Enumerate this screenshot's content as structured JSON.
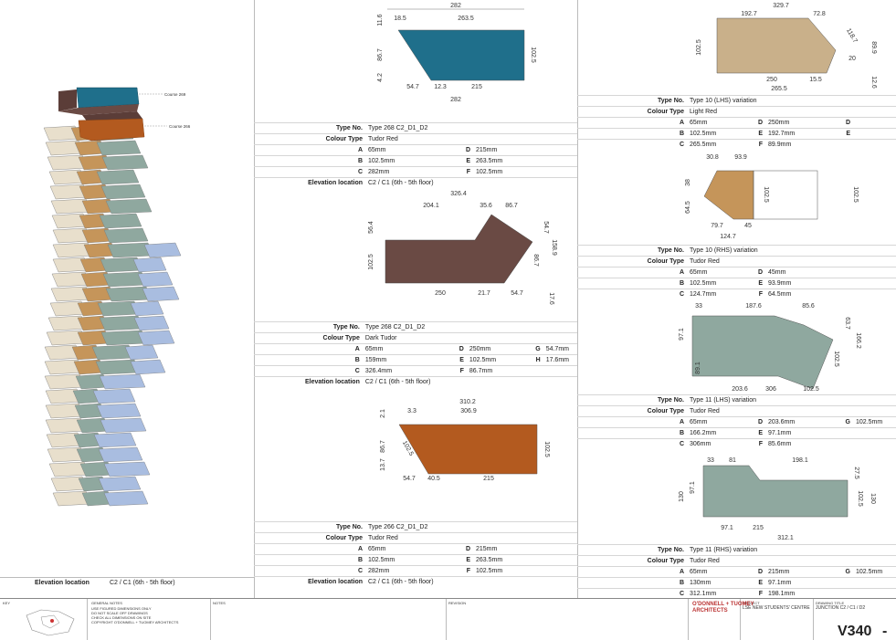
{
  "drawing_title": "JUNCTION C2 / C1 / D2",
  "project": "LSE NEW STUDENTS' CENTRE",
  "sheet_number": "V340",
  "revision": "-",
  "architect": {
    "line1": "O'DONNELL + TUOMEY",
    "line2": "ARCHITECTS"
  },
  "footer": {
    "key_label": "KEY",
    "general_notes_label": "GENERAL NOTES",
    "general_notes": "USE FIGURED DIMENSIONS ONLY\nDO NOT SCALE OFF DRAWINGS\nCHECK ALL DIMENSIONS ON SITE\nCOPYRIGHT O'DONNELL + TUOMEY ARCHITECTS",
    "notes_label": "NOTES",
    "revision_label": "REVISION",
    "project_label": "PROJECT",
    "drawing_title_label": "DRAWING TITLE"
  },
  "left_panel": {
    "course_269": "Course 269",
    "course_266": "Course 266",
    "elevation_label": "Elevation location",
    "elevation_value": "C2 / C1 (6th - 5th floor)"
  },
  "tables": {
    "t268a": {
      "type_label": "Type No.",
      "type_value": "Type 268 C2_D1_D2",
      "colour_label": "Colour Type",
      "colour_value": "Tudor Red",
      "rows": [
        [
          "A",
          "65mm",
          "D",
          "215mm"
        ],
        [
          "B",
          "102.5mm",
          "E",
          "263.5mm"
        ],
        [
          "C",
          "282mm",
          "F",
          "102.5mm"
        ]
      ],
      "elev_label": "Elevation location",
      "elev_value": "C2 / C1 (6th - 5th floor)"
    },
    "t268b": {
      "type_label": "Type No.",
      "type_value": "Type 268 C2_D1_D2",
      "colour_label": "Colour Type",
      "colour_value": "Dark Tudor",
      "rows": [
        [
          "A",
          "65mm",
          "D",
          "250mm",
          "G",
          "54.7mm"
        ],
        [
          "B",
          "159mm",
          "E",
          "102.5mm",
          "H",
          "17.6mm"
        ],
        [
          "C",
          "326.4mm",
          "F",
          "86.7mm",
          "",
          ""
        ]
      ],
      "elev_label": "Elevation location",
      "elev_value": "C2 / C1 (6th - 5th floor)"
    },
    "t266": {
      "type_label": "Type No.",
      "type_value": "Type 266 C2_D1_D2",
      "colour_label": "Colour Type",
      "colour_value": "Tudor Red",
      "rows": [
        [
          "A",
          "65mm",
          "D",
          "215mm"
        ],
        [
          "B",
          "102.5mm",
          "E",
          "263.5mm"
        ],
        [
          "C",
          "282mm",
          "F",
          "102.5mm"
        ]
      ],
      "elev_label": "Elevation location",
      "elev_value": "C2 / C1 (6th - 5th floor)"
    },
    "t10lhs": {
      "type_label": "Type No.",
      "type_value": "Type 10 (LHS) variation",
      "colour_label": "Colour Type",
      "colour_value": "Light Red",
      "rows": [
        [
          "A",
          "65mm",
          "D",
          "250mm",
          "D",
          ""
        ],
        [
          "B",
          "102.5mm",
          "E",
          "192.7mm",
          "E",
          ""
        ],
        [
          "C",
          "265.5mm",
          "F",
          "89.9mm",
          "",
          ""
        ]
      ]
    },
    "t10rhs": {
      "type_label": "Type No.",
      "type_value": "Type 10 (RHS) variation",
      "colour_label": "Colour Type",
      "colour_value": "Tudor Red",
      "rows": [
        [
          "A",
          "65mm",
          "D",
          "45mm"
        ],
        [
          "B",
          "102.5mm",
          "E",
          "93.9mm"
        ],
        [
          "C",
          "124.7mm",
          "F",
          "64.5mm"
        ]
      ]
    },
    "t11lhs": {
      "type_label": "Type No.",
      "type_value": "Type 11 (LHS) variation",
      "colour_label": "Colour Type",
      "colour_value": "Tudor Red",
      "rows": [
        [
          "A",
          "65mm",
          "D",
          "203.6mm",
          "G",
          "102.5mm"
        ],
        [
          "B",
          "166.2mm",
          "E",
          "97.1mm",
          "",
          ""
        ],
        [
          "C",
          "306mm",
          "F",
          "85.6mm",
          "",
          ""
        ]
      ]
    },
    "t11rhs": {
      "type_label": "Type No.",
      "type_value": "Type 11 (RHS) variation",
      "colour_label": "Colour Type",
      "colour_value": "Tudor Red",
      "rows": [
        [
          "A",
          "65mm",
          "D",
          "215mm",
          "G",
          "102.5mm"
        ],
        [
          "B",
          "130mm",
          "E",
          "97.1mm",
          "",
          ""
        ],
        [
          "C",
          "312.1mm",
          "F",
          "198.1mm",
          "",
          ""
        ]
      ]
    }
  },
  "dims": {
    "d1": [
      "282",
      "18.5",
      "263.5",
      "11.6",
      "86.7",
      "4.2",
      "102.5",
      "54.7",
      "12.3",
      "215",
      "282"
    ],
    "d2": [
      "326.4",
      "204.1",
      "35.6",
      "86.7",
      "56.4",
      "102.5",
      "158.9",
      "54.7",
      "86.7",
      "250",
      "21.7",
      "54.7",
      "17.6"
    ],
    "d3": [
      "310.2",
      "3.3",
      "306.9",
      "2.1",
      "86.7",
      "13.7",
      "102.5",
      "102.5",
      "54.7",
      "40.5",
      "215"
    ],
    "d4": [
      "329.7",
      "192.7",
      "72.8",
      "118.7",
      "89.9",
      "102.5",
      "20",
      "250",
      "15.5",
      "265.5",
      "12.6"
    ],
    "d5": [
      "30.8",
      "93.9",
      "38",
      "64.5",
      "102.5",
      "102.5",
      "79.7",
      "45",
      "124.7"
    ],
    "d6": [
      "33",
      "187.6",
      "85.6",
      "97.1",
      "63.7",
      "166.2",
      "102.5",
      "89.1",
      "203.6",
      "306",
      "102.5"
    ],
    "d7": [
      "33",
      "81",
      "198.1",
      "27.5",
      "130",
      "97.1",
      "102.5",
      "130",
      "97.1",
      "215",
      "312.1"
    ]
  },
  "colors": {
    "teal": "#1f6f8b",
    "brown": "#6a4a44",
    "orange": "#b35a1f",
    "tan": "#c9b08a",
    "sand": "#c5955a",
    "sage": "#8fa89f",
    "blue": "#a9bde0",
    "cream": "#e8dfcc"
  }
}
